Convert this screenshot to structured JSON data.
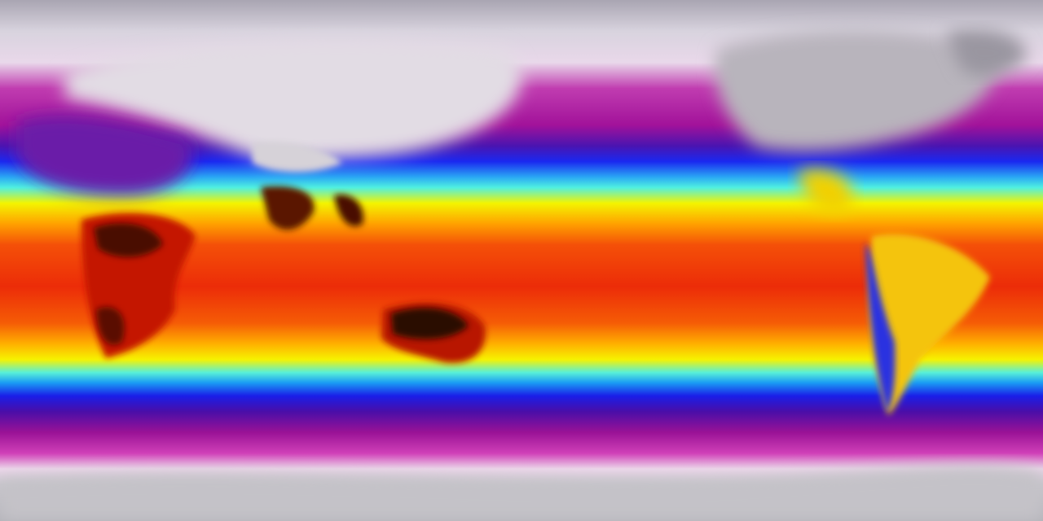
{
  "map": {
    "kind": "global surface temperature field",
    "projection": "equirectangular",
    "colors": {
      "polar_gray": "#b9b9bf",
      "cold_white": "#efe6ef",
      "cold_magenta": "#b0139e",
      "cool_purple": "#5a12a8",
      "blue": "#1a1ee8",
      "cyan": "#38e6f0",
      "yellow": "#f6f200",
      "orange": "#ff8a00",
      "red": "#ec2a08",
      "hot_dark": "#3a0a04"
    }
  }
}
